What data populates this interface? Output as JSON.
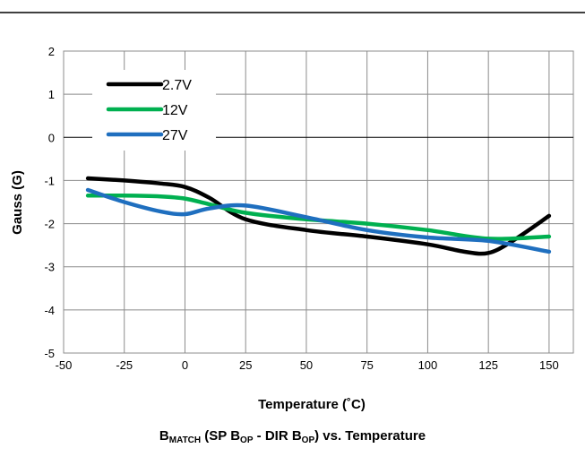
{
  "chart_data": {
    "type": "line",
    "title": "",
    "xlabel": "Temperature (˚C)",
    "ylabel": "Gauss (G)",
    "xlim": [
      -50,
      160
    ],
    "ylim": [
      -5,
      2
    ],
    "xticks": [
      -50,
      -25,
      0,
      25,
      50,
      75,
      100,
      125,
      150
    ],
    "yticks": [
      2,
      1,
      0,
      -1,
      -2,
      -3,
      -4,
      -5
    ],
    "grid": true,
    "legend_position": "top-left",
    "series": [
      {
        "name": "2.7V",
        "color": "#000000",
        "x": [
          -40,
          -25,
          -10,
          0,
          10,
          25,
          50,
          75,
          100,
          115,
          125,
          135,
          150
        ],
        "y": [
          -0.95,
          -1.0,
          -1.07,
          -1.15,
          -1.4,
          -1.9,
          -2.15,
          -2.3,
          -2.48,
          -2.65,
          -2.68,
          -2.4,
          -1.82
        ]
      },
      {
        "name": "12V",
        "color": "#00b050",
        "x": [
          -40,
          -25,
          -10,
          0,
          10,
          25,
          50,
          75,
          100,
          125,
          150
        ],
        "y": [
          -1.35,
          -1.35,
          -1.37,
          -1.42,
          -1.55,
          -1.75,
          -1.9,
          -2.0,
          -2.15,
          -2.35,
          -2.3
        ]
      },
      {
        "name": "27V",
        "color": "#1f6fbf",
        "x": [
          -40,
          -25,
          -10,
          0,
          10,
          25,
          50,
          75,
          100,
          125,
          150
        ],
        "y": [
          -1.22,
          -1.5,
          -1.72,
          -1.78,
          -1.65,
          -1.58,
          -1.85,
          -2.15,
          -2.32,
          -2.4,
          -2.65
        ]
      }
    ]
  },
  "caption": {
    "b": "B",
    "b_sub": "MATCH",
    "mid1": " (SP B",
    "op_sub1": "OP",
    "mid2": " - DIR B",
    "op_sub2": "OP",
    "end": ") vs. Temperature"
  }
}
